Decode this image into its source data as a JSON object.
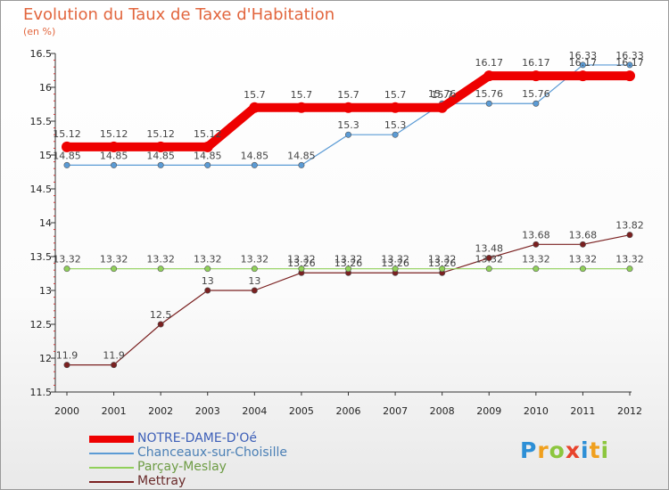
{
  "header": {
    "title": "Evolution du Taux de Taxe d'Habitation",
    "unit": "(en %)"
  },
  "chart_data": {
    "type": "line",
    "title": "Evolution du Taux de Taxe d'Habitation",
    "ylabel": "(en %)",
    "ylim": [
      11.5,
      16.5
    ],
    "yticks": [
      11.5,
      12,
      12.5,
      13,
      13.5,
      14,
      14.5,
      15,
      15.5,
      16,
      16.5
    ],
    "grid": false,
    "legend_position": "bottom-left",
    "x": [
      "2000",
      "2001",
      "2002",
      "2003",
      "2004",
      "2005",
      "2006",
      "2007",
      "2008",
      "2009",
      "2010",
      "2011",
      "2012"
    ],
    "series": [
      {
        "name": "NOTRE-DAME-D'Oé",
        "color": "#ee0000",
        "values": [
          15.12,
          15.12,
          15.12,
          15.12,
          15.7,
          15.7,
          15.7,
          15.7,
          15.7,
          16.17,
          16.17,
          16.17,
          16.17
        ]
      },
      {
        "name": "Chanceaux-sur-Choisille",
        "color": "#5b9bd5",
        "values": [
          14.85,
          14.85,
          14.85,
          14.85,
          14.85,
          14.85,
          15.3,
          15.3,
          15.76,
          15.76,
          15.76,
          16.33,
          16.33
        ]
      },
      {
        "name": "Parçay-Meslay",
        "color": "#90d05a",
        "values": [
          13.32,
          13.32,
          13.32,
          13.32,
          13.32,
          13.32,
          13.32,
          13.32,
          13.32,
          13.32,
          13.32,
          13.32,
          13.32
        ]
      },
      {
        "name": "Mettray",
        "color": "#7a2020",
        "values": [
          11.9,
          11.9,
          12.5,
          13,
          13,
          13.26,
          13.26,
          13.26,
          13.26,
          13.48,
          13.68,
          13.68,
          13.82
        ]
      }
    ]
  },
  "brand": {
    "logo_letters": [
      "P",
      "r",
      "o",
      "x",
      "i",
      "t",
      "i"
    ],
    "logo_colors": [
      "#2d8fd6",
      "#f0a01e",
      "#8cc63e",
      "#e8432c",
      "#2d8fd6",
      "#f0a01e",
      "#8cc63e"
    ]
  }
}
